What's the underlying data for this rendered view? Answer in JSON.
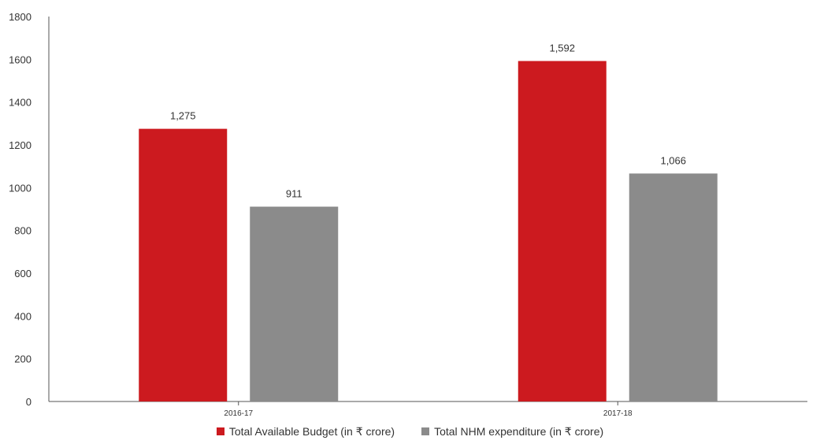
{
  "chart_data": {
    "type": "bar",
    "categories": [
      "2016-17",
      "2017-18"
    ],
    "series": [
      {
        "name": "Total Available Budget (in ₹ crore)",
        "color": "#cc1a1f",
        "values": [
          1275,
          1592
        ],
        "labels": [
          "1,275",
          "1,592"
        ]
      },
      {
        "name": "Total NHM expenditure (in ₹ crore)",
        "color": "#8b8b8b",
        "values": [
          911,
          1066
        ],
        "labels": [
          "911",
          "1,066"
        ]
      }
    ],
    "ylim": [
      0,
      1800
    ],
    "yticks": [
      0,
      200,
      400,
      600,
      800,
      1000,
      1200,
      1400,
      1600,
      1800
    ],
    "ytick_labels": [
      "0",
      "200",
      "400",
      "600",
      "800",
      "1000",
      "1200",
      "1400",
      "1600",
      "1800"
    ],
    "legend_position": "bottom-center",
    "grid": false
  }
}
